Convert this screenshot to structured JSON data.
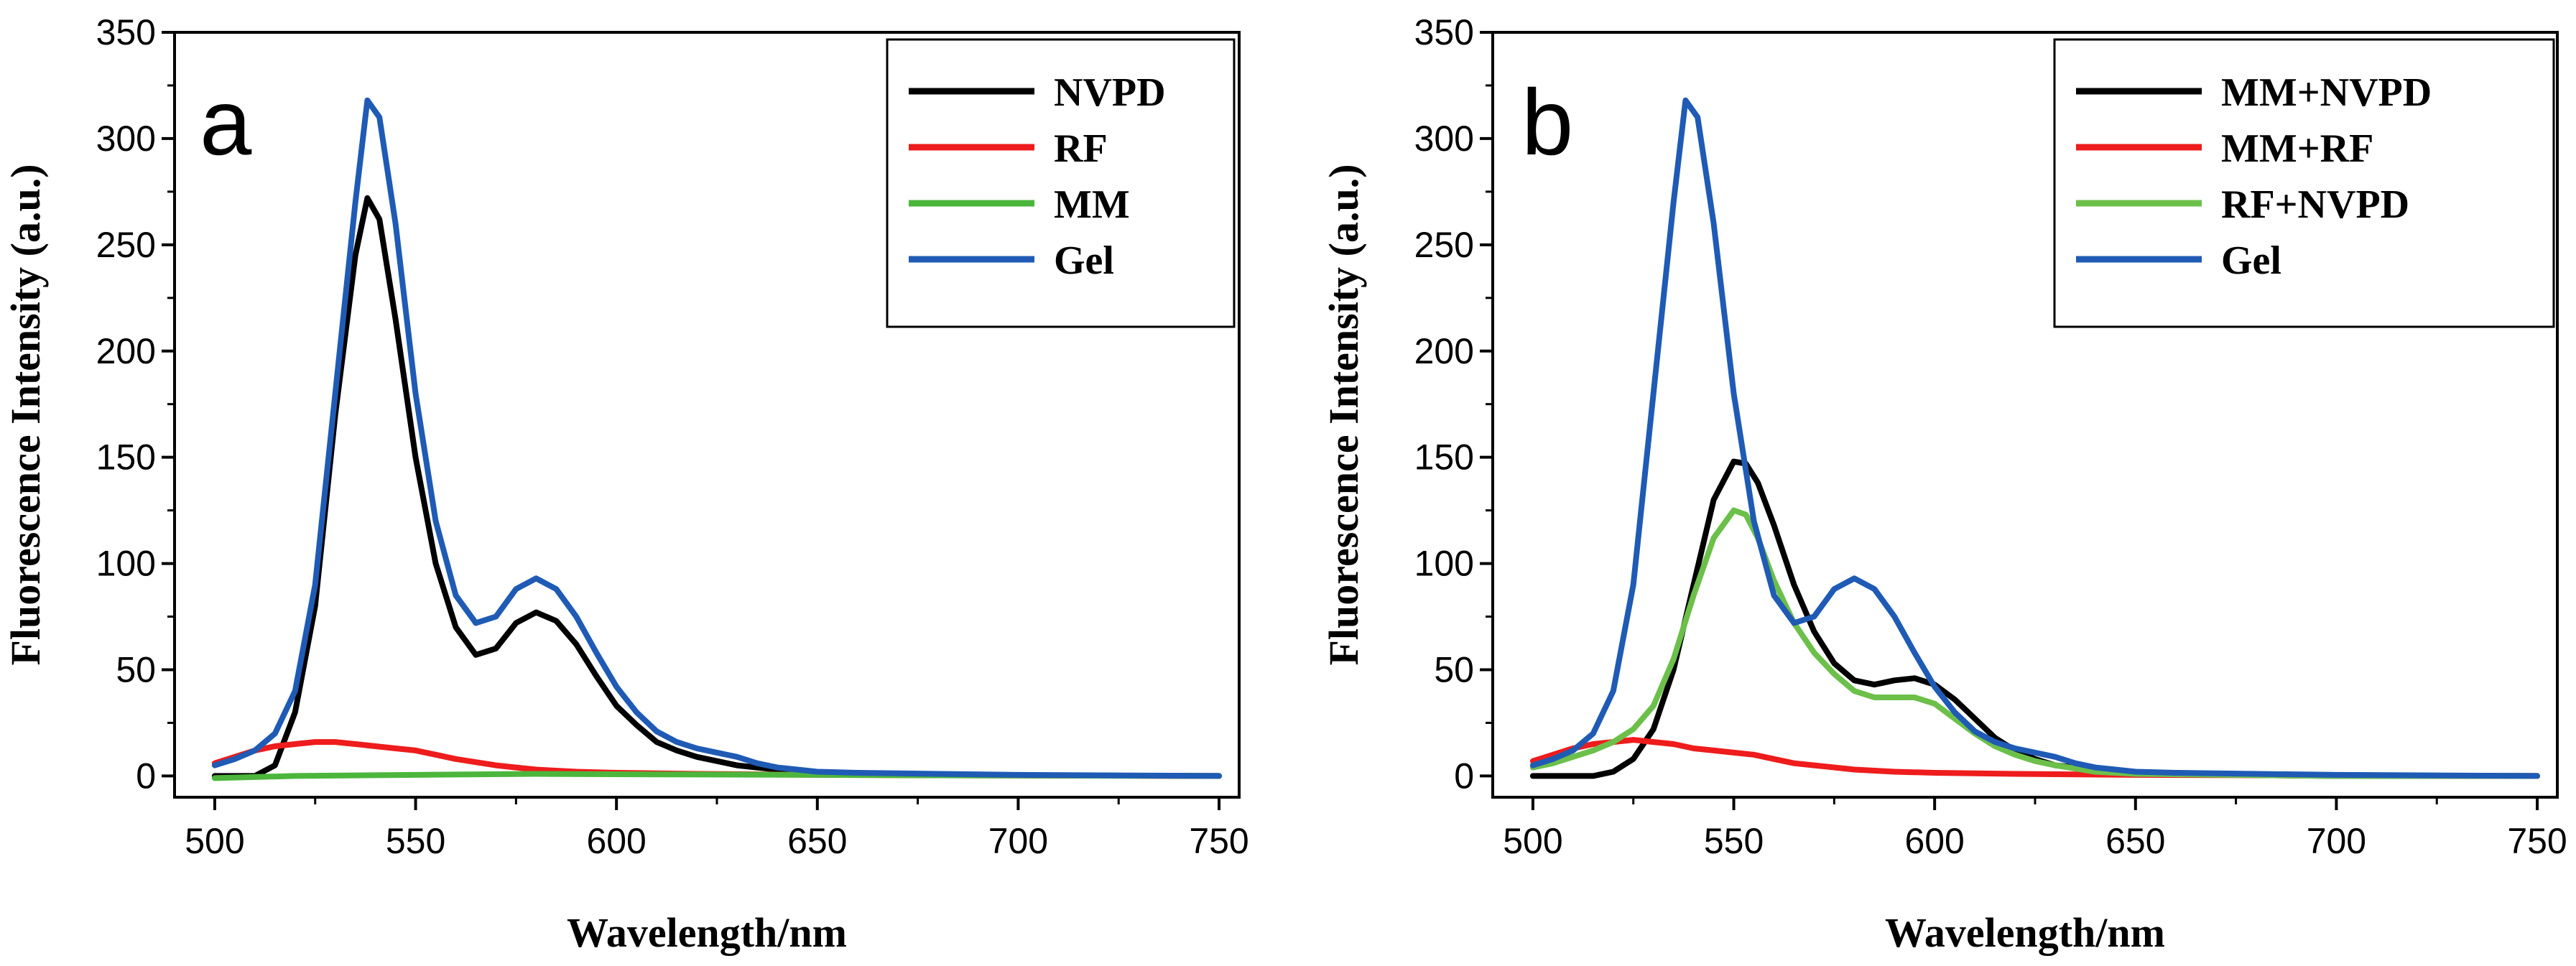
{
  "chart_data": [
    {
      "type": "line",
      "panel_label": "a",
      "xlabel": "Wavelength/nm",
      "ylabel": "Fluorescence Intensity (a.u.)",
      "xlim": [
        490,
        755
      ],
      "ylim": [
        -10,
        350
      ],
      "xticks": [
        500,
        550,
        600,
        650,
        700,
        750
      ],
      "yticks": [
        0,
        50,
        100,
        150,
        200,
        250,
        300,
        350
      ],
      "legend_position": "top-right",
      "series": [
        {
          "name": "NVPD",
          "color": "#000000",
          "points": [
            [
              500,
              0
            ],
            [
              510,
              0
            ],
            [
              515,
              5
            ],
            [
              520,
              30
            ],
            [
              525,
              80
            ],
            [
              530,
              170
            ],
            [
              535,
              245
            ],
            [
              538,
              272
            ],
            [
              541,
              262
            ],
            [
              545,
              215
            ],
            [
              550,
              150
            ],
            [
              555,
              100
            ],
            [
              560,
              70
            ],
            [
              565,
              57
            ],
            [
              570,
              60
            ],
            [
              575,
              72
            ],
            [
              580,
              77
            ],
            [
              585,
              73
            ],
            [
              590,
              62
            ],
            [
              595,
              47
            ],
            [
              600,
              33
            ],
            [
              605,
              24
            ],
            [
              610,
              16
            ],
            [
              615,
              12
            ],
            [
              620,
              9
            ],
            [
              625,
              7
            ],
            [
              630,
              5
            ],
            [
              635,
              4
            ],
            [
              640,
              3
            ],
            [
              645,
              2
            ],
            [
              650,
              1.5
            ],
            [
              660,
              1
            ],
            [
              680,
              0.5
            ],
            [
              700,
              0.3
            ],
            [
              750,
              0
            ]
          ]
        },
        {
          "name": "RF",
          "color": "#ee1c1c",
          "points": [
            [
              500,
              6
            ],
            [
              505,
              9
            ],
            [
              510,
              12
            ],
            [
              515,
              14
            ],
            [
              520,
              15
            ],
            [
              525,
              16
            ],
            [
              530,
              16
            ],
            [
              535,
              15
            ],
            [
              540,
              14
            ],
            [
              545,
              13
            ],
            [
              550,
              12
            ],
            [
              555,
              10
            ],
            [
              560,
              8
            ],
            [
              565,
              6.5
            ],
            [
              570,
              5
            ],
            [
              575,
              4
            ],
            [
              580,
              3
            ],
            [
              590,
              2
            ],
            [
              600,
              1.5
            ],
            [
              620,
              1
            ],
            [
              650,
              0.5
            ],
            [
              700,
              0.2
            ],
            [
              750,
              0
            ]
          ]
        },
        {
          "name": "MM",
          "color": "#4cb63c",
          "points": [
            [
              500,
              -1
            ],
            [
              520,
              0
            ],
            [
              550,
              0.5
            ],
            [
              580,
              1
            ],
            [
              600,
              0.8
            ],
            [
              650,
              0.5
            ],
            [
              700,
              0.2
            ],
            [
              750,
              0
            ]
          ]
        },
        {
          "name": "Gel",
          "color": "#1f5bb5",
          "points": [
            [
              500,
              5
            ],
            [
              505,
              8
            ],
            [
              510,
              12
            ],
            [
              515,
              20
            ],
            [
              520,
              40
            ],
            [
              525,
              90
            ],
            [
              530,
              180
            ],
            [
              535,
              270
            ],
            [
              538,
              318
            ],
            [
              541,
              310
            ],
            [
              545,
              260
            ],
            [
              550,
              180
            ],
            [
              555,
              120
            ],
            [
              560,
              85
            ],
            [
              565,
              72
            ],
            [
              570,
              75
            ],
            [
              575,
              88
            ],
            [
              580,
              93
            ],
            [
              585,
              88
            ],
            [
              590,
              75
            ],
            [
              595,
              58
            ],
            [
              600,
              42
            ],
            [
              605,
              30
            ],
            [
              610,
              21
            ],
            [
              615,
              16
            ],
            [
              620,
              13
            ],
            [
              625,
              11
            ],
            [
              630,
              9
            ],
            [
              635,
              6
            ],
            [
              640,
              4
            ],
            [
              645,
              3
            ],
            [
              650,
              2
            ],
            [
              660,
              1.5
            ],
            [
              680,
              1
            ],
            [
              700,
              0.5
            ],
            [
              750,
              0
            ]
          ]
        }
      ]
    },
    {
      "type": "line",
      "panel_label": "b",
      "xlabel": "Wavelength/nm",
      "ylabel": "Fluorescence Intensity (a.u.)",
      "xlim": [
        490,
        755
      ],
      "ylim": [
        -10,
        350
      ],
      "xticks": [
        500,
        550,
        600,
        650,
        700,
        750
      ],
      "yticks": [
        0,
        50,
        100,
        150,
        200,
        250,
        300,
        350
      ],
      "legend_position": "top-right",
      "series": [
        {
          "name": "MM+NVPD",
          "color": "#000000",
          "points": [
            [
              500,
              0
            ],
            [
              510,
              0
            ],
            [
              515,
              0
            ],
            [
              520,
              2
            ],
            [
              525,
              8
            ],
            [
              530,
              22
            ],
            [
              535,
              50
            ],
            [
              540,
              90
            ],
            [
              545,
              130
            ],
            [
              550,
              148
            ],
            [
              553,
              147
            ],
            [
              556,
              138
            ],
            [
              560,
              118
            ],
            [
              565,
              90
            ],
            [
              570,
              68
            ],
            [
              575,
              53
            ],
            [
              580,
              45
            ],
            [
              585,
              43
            ],
            [
              590,
              45
            ],
            [
              595,
              46
            ],
            [
              600,
              43
            ],
            [
              605,
              36
            ],
            [
              610,
              27
            ],
            [
              615,
              18
            ],
            [
              620,
              12
            ],
            [
              625,
              8
            ],
            [
              630,
              5
            ],
            [
              640,
              3
            ],
            [
              650,
              1
            ],
            [
              700,
              0
            ],
            [
              750,
              0
            ]
          ]
        },
        {
          "name": "MM+RF",
          "color": "#ee1c1c",
          "points": [
            [
              500,
              7
            ],
            [
              505,
              10
            ],
            [
              510,
              13
            ],
            [
              515,
              15
            ],
            [
              520,
              16
            ],
            [
              525,
              17
            ],
            [
              530,
              16
            ],
            [
              535,
              15
            ],
            [
              540,
              13
            ],
            [
              545,
              12
            ],
            [
              550,
              11
            ],
            [
              555,
              10
            ],
            [
              560,
              8
            ],
            [
              565,
              6
            ],
            [
              570,
              5
            ],
            [
              580,
              3
            ],
            [
              590,
              2
            ],
            [
              600,
              1.5
            ],
            [
              620,
              1
            ],
            [
              650,
              0.5
            ],
            [
              700,
              0.2
            ],
            [
              750,
              0
            ]
          ]
        },
        {
          "name": "RF+NVPD",
          "color": "#6cc04a",
          "points": [
            [
              500,
              4
            ],
            [
              505,
              6
            ],
            [
              510,
              9
            ],
            [
              515,
              12
            ],
            [
              520,
              16
            ],
            [
              525,
              22
            ],
            [
              530,
              33
            ],
            [
              535,
              55
            ],
            [
              540,
              85
            ],
            [
              545,
              112
            ],
            [
              550,
              125
            ],
            [
              553,
              123
            ],
            [
              556,
              112
            ],
            [
              560,
              92
            ],
            [
              565,
              72
            ],
            [
              570,
              58
            ],
            [
              575,
              48
            ],
            [
              580,
              40
            ],
            [
              585,
              37
            ],
            [
              590,
              37
            ],
            [
              595,
              37
            ],
            [
              600,
              34
            ],
            [
              605,
              27
            ],
            [
              610,
              20
            ],
            [
              615,
              14
            ],
            [
              620,
              10
            ],
            [
              625,
              7
            ],
            [
              630,
              5
            ],
            [
              640,
              2
            ],
            [
              650,
              1
            ],
            [
              700,
              0
            ],
            [
              750,
              0
            ]
          ]
        },
        {
          "name": "Gel",
          "color": "#1f5bb5",
          "points": [
            [
              500,
              5
            ],
            [
              505,
              8
            ],
            [
              510,
              12
            ],
            [
              515,
              20
            ],
            [
              520,
              40
            ],
            [
              525,
              90
            ],
            [
              530,
              180
            ],
            [
              535,
              270
            ],
            [
              538,
              318
            ],
            [
              541,
              310
            ],
            [
              545,
              260
            ],
            [
              550,
              180
            ],
            [
              555,
              120
            ],
            [
              560,
              85
            ],
            [
              565,
              72
            ],
            [
              570,
              75
            ],
            [
              575,
              88
            ],
            [
              580,
              93
            ],
            [
              585,
              88
            ],
            [
              590,
              75
            ],
            [
              595,
              58
            ],
            [
              600,
              42
            ],
            [
              605,
              30
            ],
            [
              610,
              21
            ],
            [
              615,
              16
            ],
            [
              620,
              13
            ],
            [
              625,
              11
            ],
            [
              630,
              9
            ],
            [
              635,
              6
            ],
            [
              640,
              4
            ],
            [
              645,
              3
            ],
            [
              650,
              2
            ],
            [
              660,
              1.5
            ],
            [
              680,
              1
            ],
            [
              700,
              0.5
            ],
            [
              750,
              0
            ]
          ]
        }
      ]
    }
  ]
}
